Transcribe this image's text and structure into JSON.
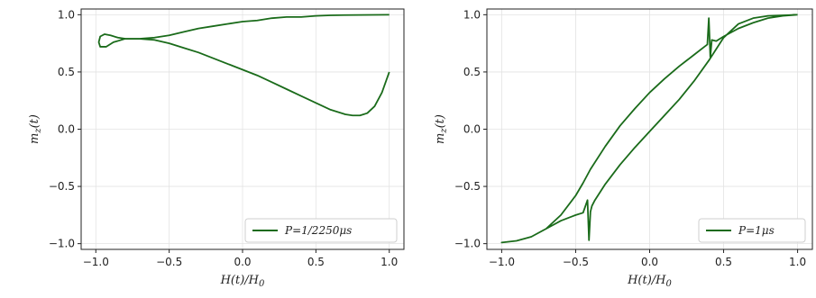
{
  "chart_data": [
    {
      "type": "line",
      "xlabel_main": "H(t)/H",
      "xlabel_sub": "0",
      "ylabel_main": "m",
      "ylabel_sub": "z",
      "ylabel_tail": "(t)",
      "xlim": [
        -1.1,
        1.1
      ],
      "ylim": [
        -1.05,
        1.05
      ],
      "xticks": [
        -1.0,
        -0.5,
        0.0,
        0.5,
        1.0
      ],
      "yticks": [
        -1.0,
        -0.5,
        0.0,
        0.5,
        1.0
      ],
      "xtick_labels": [
        "−1.0",
        "−0.5",
        "0.0",
        "0.5",
        "1.0"
      ],
      "ytick_labels": [
        "−1.0",
        "−0.5",
        "0.0",
        "0.5",
        "1.0"
      ],
      "grid": true,
      "legend_position": "lower-right",
      "color": "#1a6b1a",
      "series": [
        {
          "name": "P=1/2250μs",
          "x": [
            1.0,
            0.95,
            0.9,
            0.85,
            0.8,
            0.75,
            0.7,
            0.6,
            0.5,
            0.4,
            0.3,
            0.2,
            0.1,
            0.0,
            -0.1,
            -0.2,
            -0.3,
            -0.4,
            -0.5,
            -0.6,
            -0.7,
            -0.8,
            -0.88,
            -0.93,
            -0.97,
            -0.98,
            -0.97,
            -0.94,
            -0.9,
            -0.85,
            -0.8,
            -0.7,
            -0.6,
            -0.5,
            -0.4,
            -0.3,
            -0.2,
            -0.1,
            0.0,
            0.1,
            0.2,
            0.3,
            0.4,
            0.5,
            0.6,
            0.7,
            0.8,
            0.9,
            1.0
          ],
          "y": [
            0.5,
            0.32,
            0.2,
            0.14,
            0.12,
            0.12,
            0.13,
            0.17,
            0.23,
            0.29,
            0.35,
            0.41,
            0.47,
            0.52,
            0.57,
            0.62,
            0.67,
            0.71,
            0.75,
            0.78,
            0.79,
            0.79,
            0.76,
            0.72,
            0.72,
            0.76,
            0.81,
            0.83,
            0.82,
            0.8,
            0.79,
            0.79,
            0.8,
            0.82,
            0.85,
            0.88,
            0.9,
            0.92,
            0.94,
            0.95,
            0.97,
            0.98,
            0.98,
            0.99,
            0.995,
            0.997,
            0.998,
            0.999,
            1.0
          ]
        }
      ]
    },
    {
      "type": "line",
      "xlabel_main": "H(t)/H",
      "xlabel_sub": "0",
      "ylabel_main": "m",
      "ylabel_sub": "z",
      "ylabel_tail": "(t)",
      "xlim": [
        -1.1,
        1.1
      ],
      "ylim": [
        -1.05,
        1.05
      ],
      "xticks": [
        -1.0,
        -0.5,
        0.0,
        0.5,
        1.0
      ],
      "yticks": [
        -1.0,
        -0.5,
        0.0,
        0.5,
        1.0
      ],
      "xtick_labels": [
        "−1.0",
        "−0.5",
        "0.0",
        "0.5",
        "1.0"
      ],
      "ytick_labels": [
        "−1.0",
        "−0.5",
        "0.0",
        "0.5",
        "1.0"
      ],
      "grid": true,
      "legend_position": "lower-right",
      "color": "#1a6b1a",
      "series": [
        {
          "name": "P=1μs",
          "x": [
            1.0,
            0.9,
            0.8,
            0.7,
            0.6,
            0.5,
            0.45,
            0.42,
            0.41,
            0.4,
            0.39,
            0.37,
            0.3,
            0.2,
            0.1,
            0.0,
            -0.1,
            -0.2,
            -0.3,
            -0.4,
            -0.45,
            -0.5,
            -0.6,
            -0.7,
            -0.8,
            -0.9,
            -1.0,
            -0.9,
            -0.8,
            -0.7,
            -0.6,
            -0.5,
            -0.45,
            -0.42,
            -0.41,
            -0.4,
            -0.39,
            -0.37,
            -0.3,
            -0.2,
            -0.1,
            0.0,
            0.1,
            0.2,
            0.3,
            0.4,
            0.5,
            0.6,
            0.7,
            0.8,
            0.9,
            1.0
          ],
          "y": [
            1.0,
            0.99,
            0.97,
            0.93,
            0.88,
            0.81,
            0.77,
            0.78,
            0.63,
            0.97,
            0.74,
            0.72,
            0.65,
            0.55,
            0.44,
            0.32,
            0.18,
            0.03,
            -0.15,
            -0.35,
            -0.47,
            -0.58,
            -0.75,
            -0.87,
            -0.94,
            -0.975,
            -0.99,
            -0.975,
            -0.94,
            -0.87,
            -0.8,
            -0.75,
            -0.73,
            -0.62,
            -0.97,
            -0.72,
            -0.67,
            -0.62,
            -0.48,
            -0.31,
            -0.16,
            -0.02,
            0.12,
            0.26,
            0.42,
            0.6,
            0.8,
            0.92,
            0.97,
            0.99,
            0.995,
            1.0
          ]
        }
      ]
    }
  ]
}
